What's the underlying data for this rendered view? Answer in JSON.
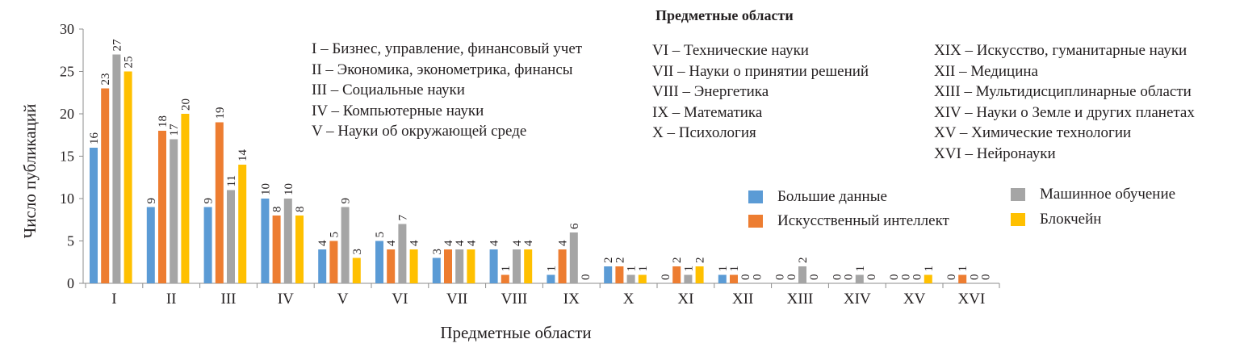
{
  "chart_data": {
    "type": "bar",
    "title": "Предметные области",
    "xlabel": "Предметные области",
    "ylabel": "Число публикаций",
    "ylim": [
      0,
      30
    ],
    "yticks": [
      0,
      5,
      10,
      15,
      20,
      25,
      30
    ],
    "grid": false,
    "legend_position": "right",
    "categories": [
      "I",
      "II",
      "III",
      "IV",
      "V",
      "VI",
      "VII",
      "VIII",
      "IX",
      "X",
      "XI",
      "XII",
      "XIII",
      "XIV",
      "XV",
      "XVI"
    ],
    "series": [
      {
        "name": "Большие данные",
        "color": "#5b9bd5",
        "values": [
          16,
          9,
          9,
          10,
          4,
          5,
          3,
          4,
          1,
          2,
          0,
          1,
          0,
          0,
          0,
          0
        ]
      },
      {
        "name": "Искусственный интеллект",
        "color": "#ed7d31",
        "values": [
          23,
          18,
          19,
          8,
          5,
          4,
          4,
          1,
          4,
          2,
          2,
          1,
          0,
          0,
          0,
          1
        ]
      },
      {
        "name": "Машинное обучение",
        "color": "#a5a5a5",
        "values": [
          27,
          17,
          11,
          10,
          9,
          7,
          4,
          4,
          6,
          1,
          1,
          0,
          2,
          1,
          0,
          0
        ]
      },
      {
        "name": "Блокчейн",
        "color": "#ffc000",
        "values": [
          25,
          20,
          14,
          8,
          3,
          4,
          4,
          4,
          0,
          1,
          2,
          0,
          0,
          0,
          1,
          0
        ]
      }
    ],
    "category_key_title": "Предметные области",
    "category_key": [
      [
        "I – Бизнес, управление, финансовый учет",
        "II – Экономика, эконометрика, финансы",
        "III – Социальные науки",
        "IV – Компьютерные науки",
        "V – Науки об окружающей среде"
      ],
      [
        "VI – Технические науки",
        "VII – Науки о принятии решений",
        "VIII – Энергетика",
        "IX – Математика",
        "X – Психология"
      ],
      [
        "XIX – Искусство, гуманитарные науки",
        "XII – Медицина",
        "XIII – Мультидисциплинарные области",
        "XIV – Науки о Земле и других планетах",
        "XV – Химические технологии",
        "XVI – Нейронауки"
      ]
    ]
  }
}
